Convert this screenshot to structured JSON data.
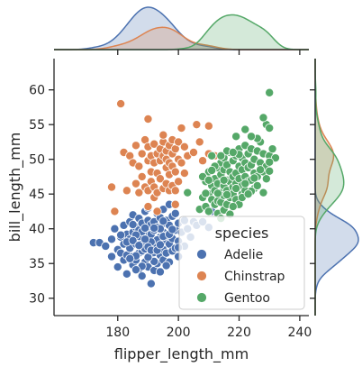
{
  "chart_data": {
    "type": "scatter",
    "xlabel": "flipper_length_mm",
    "ylabel": "bill_length_mm",
    "xlim": [
      159,
      243
    ],
    "ylim": [
      27.5,
      64.5
    ],
    "xticks": [
      180,
      200,
      220,
      240
    ],
    "yticks": [
      30,
      35,
      40,
      45,
      50,
      55,
      60
    ],
    "legend": {
      "title": "species",
      "position": "lower-right"
    },
    "grid": false,
    "marginals": {
      "top": "kde",
      "right": "kde"
    },
    "series": [
      {
        "name": "Adelie",
        "color": "#4c72b0",
        "points": [
          [
            172,
            38
          ],
          [
            174,
            38
          ],
          [
            176,
            37.5
          ],
          [
            178,
            38.5
          ],
          [
            178,
            36
          ],
          [
            179,
            40
          ],
          [
            180,
            37
          ],
          [
            180,
            34.5
          ],
          [
            181,
            36.5
          ],
          [
            181,
            38.8
          ],
          [
            182,
            40.5
          ],
          [
            182,
            37.8
          ],
          [
            182,
            35.5
          ],
          [
            183,
            39.2
          ],
          [
            183,
            36.2
          ],
          [
            183,
            33.5
          ],
          [
            184,
            38.5
          ],
          [
            184,
            41
          ],
          [
            184,
            37.2
          ],
          [
            185,
            36
          ],
          [
            185,
            39.5
          ],
          [
            185,
            42
          ],
          [
            185,
            34.8
          ],
          [
            186,
            37.8
          ],
          [
            186,
            40.2
          ],
          [
            186,
            35.5
          ],
          [
            186,
            38.8
          ],
          [
            187,
            36.5
          ],
          [
            187,
            39.8
          ],
          [
            187,
            41.5
          ],
          [
            187,
            34.2
          ],
          [
            188,
            38.2
          ],
          [
            188,
            40.8
          ],
          [
            188,
            36.8
          ],
          [
            188,
            37.5
          ],
          [
            188,
            33.2
          ],
          [
            189,
            39
          ],
          [
            189,
            42.5
          ],
          [
            189,
            35.2
          ],
          [
            189,
            37.8
          ],
          [
            190,
            38.5
          ],
          [
            190,
            40
          ],
          [
            190,
            36
          ],
          [
            190,
            41.2
          ],
          [
            190,
            34.5
          ],
          [
            190,
            39.6
          ],
          [
            190,
            43
          ],
          [
            191,
            37.2
          ],
          [
            191,
            39.2
          ],
          [
            191,
            35.8
          ],
          [
            191,
            40.6
          ],
          [
            191,
            32.1
          ],
          [
            192,
            38
          ],
          [
            192,
            41
          ],
          [
            192,
            36.6
          ],
          [
            192,
            39.8
          ],
          [
            192,
            34
          ],
          [
            193,
            37.5
          ],
          [
            193,
            40.2
          ],
          [
            193,
            42.2
          ],
          [
            193,
            35
          ],
          [
            194,
            38.8
          ],
          [
            194,
            36.2
          ],
          [
            194,
            41.6
          ],
          [
            194,
            33.8
          ],
          [
            195,
            39.5
          ],
          [
            195,
            37
          ],
          [
            195,
            40.8
          ],
          [
            195,
            35.5
          ],
          [
            195,
            42.8
          ],
          [
            196,
            38.2
          ],
          [
            196,
            36.5
          ],
          [
            196,
            41.2
          ],
          [
            196,
            39
          ],
          [
            197,
            37.8
          ],
          [
            197,
            40.5
          ],
          [
            197,
            35.2
          ],
          [
            197,
            43.5
          ],
          [
            198,
            38.6
          ],
          [
            198,
            41.8
          ],
          [
            198,
            36.8
          ],
          [
            199,
            39.8
          ],
          [
            199,
            37.2
          ],
          [
            199,
            42.2
          ],
          [
            200,
            38.2
          ],
          [
            200,
            40.8
          ],
          [
            200,
            36
          ],
          [
            201,
            39.5
          ],
          [
            202,
            41.2
          ],
          [
            202,
            37.5
          ],
          [
            203,
            40
          ],
          [
            204,
            38.8
          ],
          [
            205,
            41
          ],
          [
            206,
            40.5
          ],
          [
            208,
            41
          ],
          [
            210,
            40.2
          ],
          [
            211,
            42.5
          ],
          [
            193,
            38.4
          ],
          [
            187,
            38.9
          ],
          [
            189,
            37.1
          ],
          [
            186,
            36.1
          ],
          [
            191,
            38.1
          ],
          [
            195,
            38.9
          ],
          [
            185,
            40.6
          ],
          [
            190,
            37.4
          ],
          [
            188,
            39.6
          ],
          [
            192,
            35.3
          ],
          [
            189,
            40.1
          ],
          [
            196,
            34.7
          ],
          [
            183,
            38.1
          ],
          [
            194,
            40
          ],
          [
            197,
            39.2
          ],
          [
            190,
            35.9
          ],
          [
            186,
            39.1
          ],
          [
            195,
            41.1
          ],
          [
            188,
            34.6
          ],
          [
            192,
            40.1
          ],
          [
            184,
            35.7
          ],
          [
            198,
            39.9
          ],
          [
            185,
            38.3
          ],
          [
            187,
            37.6
          ],
          [
            191,
            36.9
          ],
          [
            193,
            36.9
          ],
          [
            189,
            38.5
          ],
          [
            200,
            37.3
          ],
          [
            181,
            39.1
          ],
          [
            186,
            34.1
          ],
          [
            194,
            37.7
          ]
        ]
      },
      {
        "name": "Chinstrap",
        "color": "#dd8452",
        "points": [
          [
            178,
            46
          ],
          [
            179,
            42.5
          ],
          [
            181,
            58
          ],
          [
            182,
            51
          ],
          [
            183,
            45.5
          ],
          [
            184,
            50.5
          ],
          [
            185,
            49.5
          ],
          [
            186,
            46.5
          ],
          [
            186,
            52
          ],
          [
            187,
            49
          ],
          [
            187,
            45.2
          ],
          [
            188,
            50.8
          ],
          [
            188,
            47.5
          ],
          [
            189,
            52.8
          ],
          [
            189,
            46
          ],
          [
            190,
            49.8
          ],
          [
            190,
            45.5
          ],
          [
            190,
            51.8
          ],
          [
            190,
            55.8
          ],
          [
            191,
            48.2
          ],
          [
            191,
            50.5
          ],
          [
            191,
            46.8
          ],
          [
            192,
            49.5
          ],
          [
            192,
            52.2
          ],
          [
            192,
            46
          ],
          [
            192,
            44.5
          ],
          [
            193,
            50.8
          ],
          [
            193,
            48
          ],
          [
            193,
            45.2
          ],
          [
            194,
            51.5
          ],
          [
            194,
            47.2
          ],
          [
            194,
            49.8
          ],
          [
            195,
            50.5
          ],
          [
            195,
            45.8
          ],
          [
            195,
            52.5
          ],
          [
            195,
            53.5
          ],
          [
            196,
            48.8
          ],
          [
            196,
            51.2
          ],
          [
            196,
            46.5
          ],
          [
            196,
            50
          ],
          [
            197,
            49.5
          ],
          [
            197,
            52
          ],
          [
            197,
            45.5
          ],
          [
            197,
            47.8
          ],
          [
            198,
            50.8
          ],
          [
            198,
            46.2
          ],
          [
            198,
            52.8
          ],
          [
            198,
            49
          ],
          [
            199,
            51.5
          ],
          [
            199,
            45.5
          ],
          [
            199,
            48.2
          ],
          [
            200,
            50
          ],
          [
            200,
            52.5
          ],
          [
            200,
            46.8
          ],
          [
            201,
            49.5
          ],
          [
            201,
            54.5
          ],
          [
            202,
            48
          ],
          [
            202,
            51.8
          ],
          [
            203,
            50.5
          ],
          [
            205,
            51
          ],
          [
            206,
            55
          ],
          [
            207,
            52.5
          ],
          [
            208,
            49.8
          ],
          [
            210,
            50.8
          ],
          [
            210,
            54.8
          ],
          [
            212,
            50.5
          ],
          [
            193,
            42.5
          ],
          [
            190,
            43.2
          ],
          [
            199,
            43.5
          ]
        ]
      },
      {
        "name": "Gentoo",
        "color": "#55a868",
        "points": [
          [
            203,
            45.2
          ],
          [
            207,
            42.8
          ],
          [
            208,
            44.5
          ],
          [
            209,
            43.2
          ],
          [
            209,
            46.8
          ],
          [
            210,
            45
          ],
          [
            210,
            42.5
          ],
          [
            210,
            48.2
          ],
          [
            211,
            44.2
          ],
          [
            211,
            46.2
          ],
          [
            211,
            50.5
          ],
          [
            212,
            43.5
          ],
          [
            212,
            47.2
          ],
          [
            212,
            45.5
          ],
          [
            213,
            48.8
          ],
          [
            213,
            44
          ],
          [
            213,
            46.5
          ],
          [
            213,
            42.2
          ],
          [
            214,
            47.8
          ],
          [
            214,
            45.2
          ],
          [
            214,
            49.5
          ],
          [
            214,
            43.8
          ],
          [
            215,
            46.2
          ],
          [
            215,
            48.5
          ],
          [
            215,
            44.8
          ],
          [
            215,
            50.2
          ],
          [
            215,
            42.7
          ],
          [
            216,
            47
          ],
          [
            216,
            45.5
          ],
          [
            216,
            49.2
          ],
          [
            216,
            43.5
          ],
          [
            217,
            46.8
          ],
          [
            217,
            48.2
          ],
          [
            217,
            44.5
          ],
          [
            217,
            51
          ],
          [
            218,
            46
          ],
          [
            218,
            49.8
          ],
          [
            218,
            45
          ],
          [
            218,
            47.5
          ],
          [
            219,
            48
          ],
          [
            219,
            44.2
          ],
          [
            219,
            50.5
          ],
          [
            219,
            46.5
          ],
          [
            220,
            47.2
          ],
          [
            220,
            45.8
          ],
          [
            220,
            49
          ],
          [
            220,
            51.5
          ],
          [
            220,
            43.5
          ],
          [
            221,
            48.5
          ],
          [
            221,
            46.2
          ],
          [
            221,
            50.2
          ],
          [
            221,
            45
          ],
          [
            222,
            47.5
          ],
          [
            222,
            49.5
          ],
          [
            222,
            45.5
          ],
          [
            222,
            52
          ],
          [
            223,
            48.8
          ],
          [
            223,
            46.8
          ],
          [
            223,
            50.8
          ],
          [
            224,
            47
          ],
          [
            224,
            49.2
          ],
          [
            224,
            51.5
          ],
          [
            225,
            48
          ],
          [
            225,
            50
          ],
          [
            225,
            45.8
          ],
          [
            226,
            47.5
          ],
          [
            226,
            51.2
          ],
          [
            227,
            49.5
          ],
          [
            227,
            52.5
          ],
          [
            228,
            48.2
          ],
          [
            228,
            50.8
          ],
          [
            229,
            47.2
          ],
          [
            229,
            49
          ],
          [
            229,
            55
          ],
          [
            230,
            50.5
          ],
          [
            230,
            54.5
          ],
          [
            230,
            59.6
          ],
          [
            230,
            48.3
          ],
          [
            231,
            51.5
          ],
          [
            232,
            50.2
          ],
          [
            228,
            56
          ],
          [
            226,
            53
          ],
          [
            224,
            53.3
          ],
          [
            222,
            54.3
          ],
          [
            219,
            53.3
          ],
          [
            216,
            51.2
          ],
          [
            212,
            49
          ],
          [
            208,
            47.5
          ],
          [
            214,
            41.5
          ],
          [
            217,
            42.1
          ],
          [
            210,
            47
          ],
          [
            222,
            46.5
          ],
          [
            224,
            45.4
          ],
          [
            218,
            43.2
          ],
          [
            226,
            46.2
          ],
          [
            220,
            50.7
          ],
          [
            213,
            45.1
          ],
          [
            215,
            47
          ],
          [
            219,
            45.8
          ],
          [
            221,
            44.5
          ],
          [
            223,
            45
          ],
          [
            225,
            47.3
          ],
          [
            227,
            48.5
          ],
          [
            216,
            44.9
          ],
          [
            211,
            48.4
          ],
          [
            209,
            45.1
          ],
          [
            228,
            45.2
          ],
          [
            230,
            49.6
          ],
          [
            218,
            51
          ],
          [
            214,
            50.5
          ]
        ]
      }
    ]
  }
}
